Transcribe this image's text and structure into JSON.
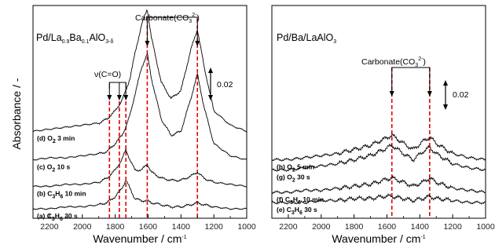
{
  "figure": {
    "y_axis_label": "Absorbance / -",
    "x_axis_label": "Wavenumber / cm",
    "x_axis_label_exp": "-1",
    "scale_value": "0.02"
  },
  "chart_data": [
    {
      "type": "line",
      "title": "Pd/La0.9Ba0.1AlO3-δ",
      "title_parts": {
        "base": "Pd/La",
        "s1": "0.9",
        "mid1": "Ba",
        "s2": "0.1",
        "mid2": "AlO",
        "s3": "3-δ"
      },
      "xlabel": "Wavenumber / cm-1",
      "ylabel": "Absorbance / -",
      "xlim": [
        2300,
        1000
      ],
      "x_reversed": true,
      "x_ticks": [
        "2200",
        "2000",
        "1800",
        "1600",
        "1400",
        "1200",
        "1000"
      ],
      "x_tick_values": [
        2200,
        2000,
        1800,
        1600,
        1400,
        1200,
        1000
      ],
      "scale_bar": "0.02",
      "carbonate_label": "Carbonate(CO3 2-)",
      "carbonate_parts": {
        "base": "Carbonate(CO",
        "s1": "3",
        "s2": "2-",
        "end": ")"
      },
      "carbonate_lines": [
        1605,
        1300
      ],
      "co_label": "ν(C=O)",
      "co_lines": [
        1835,
        1775,
        1735
      ],
      "series": [
        {
          "name": "(a) C3H6 30 s",
          "parts": {
            "a": "(a) C",
            "s1": "3",
            "b": "H",
            "s2": "6",
            "c": " 30 s"
          },
          "offset": 0.0,
          "x": [
            2300,
            2200,
            2100,
            2000,
            1900,
            1850,
            1800,
            1760,
            1735,
            1710,
            1680,
            1640,
            1605,
            1580,
            1520,
            1460,
            1400,
            1340,
            1300,
            1260,
            1200,
            1100,
            1000
          ],
          "y": [
            0.0,
            0.0,
            0.001,
            0.001,
            0.002,
            0.003,
            0.006,
            0.01,
            0.014,
            0.01,
            0.005,
            0.004,
            0.004,
            0.003,
            0.002,
            0.001,
            0.001,
            0.002,
            0.003,
            0.002,
            0.001,
            0.0,
            0.0
          ]
        },
        {
          "name": "(b) C3H6 10 min",
          "parts": {
            "a": "(b) C",
            "s1": "3",
            "b": "H",
            "s2": "6",
            "c": " 10 min"
          },
          "offset": 0.011,
          "x": [
            2300,
            2200,
            2100,
            2000,
            1900,
            1850,
            1800,
            1760,
            1735,
            1710,
            1680,
            1640,
            1605,
            1580,
            1520,
            1460,
            1400,
            1340,
            1300,
            1260,
            1200,
            1100,
            1000
          ],
          "y": [
            0.0,
            0.0,
            0.001,
            0.001,
            0.002,
            0.004,
            0.008,
            0.013,
            0.018,
            0.013,
            0.008,
            0.008,
            0.011,
            0.007,
            0.004,
            0.003,
            0.003,
            0.005,
            0.007,
            0.004,
            0.002,
            0.001,
            0.0
          ]
        },
        {
          "name": "(c) O2 10 s",
          "parts": {
            "a": "(c) O",
            "s1": "2",
            "b": "",
            "s2": "",
            "c": " 10 s"
          },
          "offset": 0.024,
          "x": [
            2300,
            2200,
            2100,
            2000,
            1900,
            1850,
            1800,
            1760,
            1735,
            1710,
            1680,
            1640,
            1605,
            1580,
            1520,
            1460,
            1400,
            1340,
            1300,
            1260,
            1200,
            1100,
            1000
          ],
          "y": [
            0.0,
            0.001,
            0.001,
            0.002,
            0.003,
            0.004,
            0.008,
            0.012,
            0.016,
            0.022,
            0.032,
            0.045,
            0.052,
            0.04,
            0.02,
            0.012,
            0.014,
            0.03,
            0.042,
            0.026,
            0.008,
            0.002,
            0.0
          ]
        },
        {
          "name": "(d) O2 3 min",
          "parts": {
            "a": "(d) O",
            "s1": "2",
            "b": "",
            "s2": "",
            "c": " 3 min"
          },
          "offset": 0.038,
          "x": [
            2300,
            2200,
            2100,
            2000,
            1900,
            1850,
            1800,
            1760,
            1735,
            1710,
            1680,
            1640,
            1605,
            1580,
            1520,
            1460,
            1400,
            1340,
            1300,
            1260,
            1200,
            1100,
            1000
          ],
          "y": [
            0.0,
            0.001,
            0.002,
            0.003,
            0.004,
            0.006,
            0.01,
            0.015,
            0.02,
            0.026,
            0.038,
            0.052,
            0.06,
            0.046,
            0.024,
            0.016,
            0.02,
            0.04,
            0.05,
            0.032,
            0.01,
            0.003,
            0.0
          ]
        }
      ]
    },
    {
      "type": "line",
      "title": "Pd/Ba/LaAlO3",
      "title_parts": {
        "base": "Pd/Ba/LaAlO",
        "s1": "3",
        "mid1": "",
        "s2": "",
        "mid2": "",
        "s3": ""
      },
      "xlabel": "Wavenumber / cm-1",
      "ylabel": "",
      "xlim": [
        2300,
        1000
      ],
      "x_reversed": true,
      "x_ticks": [
        "2200",
        "2000",
        "1800",
        "1600",
        "1400",
        "1200",
        "1000"
      ],
      "x_tick_values": [
        2200,
        2000,
        1800,
        1600,
        1400,
        1200,
        1000
      ],
      "scale_bar": "0.02",
      "carbonate_label": "Carbonate(CO3 2-)",
      "carbonate_parts": {
        "base": "Carbonate(CO",
        "s1": "3",
        "s2": "2-",
        "end": ")"
      },
      "carbonate_lines": [
        1570,
        1340
      ],
      "series": [
        {
          "name": "(e) C3H6 30 s",
          "parts": {
            "a": "(e) C",
            "s1": "3",
            "b": "H",
            "s2": "6",
            "c": " 30 s"
          },
          "offset": 0.0,
          "x": [
            2300,
            2200,
            2100,
            2000,
            1900,
            1800,
            1700,
            1620,
            1570,
            1500,
            1440,
            1380,
            1340,
            1300,
            1200,
            1100,
            1000
          ],
          "y": [
            0.0,
            0.0,
            0.0,
            0.001,
            0.001,
            0.002,
            0.002,
            0.003,
            0.003,
            0.002,
            0.001,
            0.002,
            0.003,
            0.002,
            0.001,
            0.0,
            0.0
          ]
        },
        {
          "name": "(f) C3H6 10 min",
          "parts": {
            "a": "(f) C",
            "s1": "3",
            "b": "H",
            "s2": "6",
            "c": " 10 min"
          },
          "offset": 0.005,
          "x": [
            2300,
            2200,
            2100,
            2000,
            1900,
            1800,
            1700,
            1620,
            1570,
            1500,
            1440,
            1380,
            1340,
            1300,
            1200,
            1100,
            1000
          ],
          "y": [
            0.0,
            0.0,
            0.001,
            0.001,
            0.002,
            0.003,
            0.004,
            0.006,
            0.007,
            0.005,
            0.003,
            0.005,
            0.007,
            0.005,
            0.002,
            0.001,
            0.0
          ]
        },
        {
          "name": "(g) O2 30 s",
          "parts": {
            "a": "(g) O",
            "s1": "2",
            "b": "",
            "s2": "",
            "c": " 30 s"
          },
          "offset": 0.016,
          "x": [
            2300,
            2200,
            2100,
            2000,
            1900,
            1800,
            1700,
            1620,
            1570,
            1500,
            1440,
            1380,
            1340,
            1300,
            1200,
            1100,
            1000
          ],
          "y": [
            0.0,
            0.0,
            0.001,
            0.002,
            0.003,
            0.005,
            0.007,
            0.01,
            0.012,
            0.008,
            0.005,
            0.009,
            0.011,
            0.008,
            0.003,
            0.001,
            0.0
          ]
        },
        {
          "name": "(h) O2 5 min",
          "parts": {
            "a": "(h) O",
            "s1": "2",
            "b": "",
            "s2": "",
            "c": " 5 min"
          },
          "offset": 0.021,
          "x": [
            2300,
            2200,
            2100,
            2000,
            1900,
            1800,
            1700,
            1620,
            1570,
            1500,
            1440,
            1380,
            1340,
            1300,
            1200,
            1100,
            1000
          ],
          "y": [
            0.0,
            0.0,
            0.001,
            0.002,
            0.003,
            0.005,
            0.007,
            0.01,
            0.012,
            0.008,
            0.005,
            0.009,
            0.011,
            0.008,
            0.003,
            0.001,
            0.0
          ]
        }
      ]
    }
  ]
}
